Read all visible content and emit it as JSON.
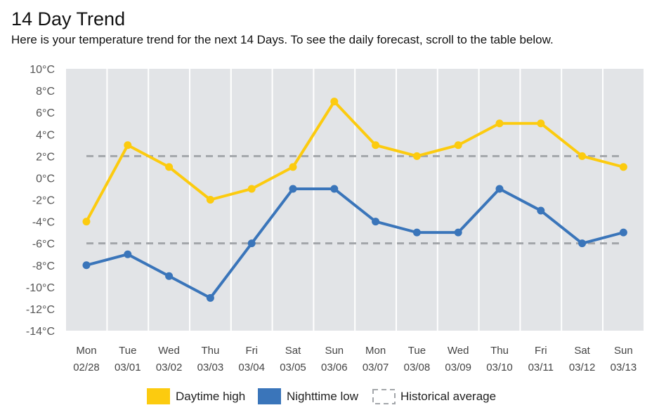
{
  "header": {
    "title": "14 Day Trend",
    "subtitle": "Here is your temperature trend for the next 14 Days. To see the daily forecast, scroll to the table below."
  },
  "colors": {
    "plot_background": "#e2e4e7",
    "gridline": "#ffffff",
    "daytime": "#fccb0f",
    "nighttime": "#3a75ba",
    "average": "#a3a6aa"
  },
  "chart_data": {
    "type": "line",
    "categories": [
      {
        "day": "Mon",
        "date": "02/28"
      },
      {
        "day": "Tue",
        "date": "03/01"
      },
      {
        "day": "Wed",
        "date": "03/02"
      },
      {
        "day": "Thu",
        "date": "03/03"
      },
      {
        "day": "Fri",
        "date": "03/04"
      },
      {
        "day": "Sat",
        "date": "03/05"
      },
      {
        "day": "Sun",
        "date": "03/06"
      },
      {
        "day": "Mon",
        "date": "03/07"
      },
      {
        "day": "Tue",
        "date": "03/08"
      },
      {
        "day": "Wed",
        "date": "03/09"
      },
      {
        "day": "Thu",
        "date": "03/10"
      },
      {
        "day": "Fri",
        "date": "03/11"
      },
      {
        "day": "Sat",
        "date": "03/12"
      },
      {
        "day": "Sun",
        "date": "03/13"
      }
    ],
    "series": [
      {
        "name": "Daytime high",
        "color": "#fccb0f",
        "values": [
          -4,
          3,
          1,
          -2,
          -1,
          1,
          7,
          3,
          2,
          3,
          5,
          5,
          2,
          1
        ]
      },
      {
        "name": "Nighttime low",
        "color": "#3a75ba",
        "values": [
          -8,
          -7,
          -9,
          -11,
          -6,
          -1,
          -1,
          -4,
          -5,
          -5,
          -1,
          -3,
          -6,
          -5
        ]
      }
    ],
    "historical_average": {
      "name": "Historical average",
      "high": 2,
      "low": -6
    },
    "y_ticks": [
      "10°C",
      "8°C",
      "6°C",
      "4°C",
      "2°C",
      "0°C",
      "-2°C",
      "-4°C",
      "-6°C",
      "-8°C",
      "-10°C",
      "-12°C",
      "-14°C"
    ],
    "ylim": [
      -14,
      10
    ],
    "y_step": 2,
    "unit": "°C",
    "legend": {
      "items": [
        "Daytime high",
        "Nighttime low",
        "Historical average"
      ],
      "position": "bottom-center"
    }
  }
}
